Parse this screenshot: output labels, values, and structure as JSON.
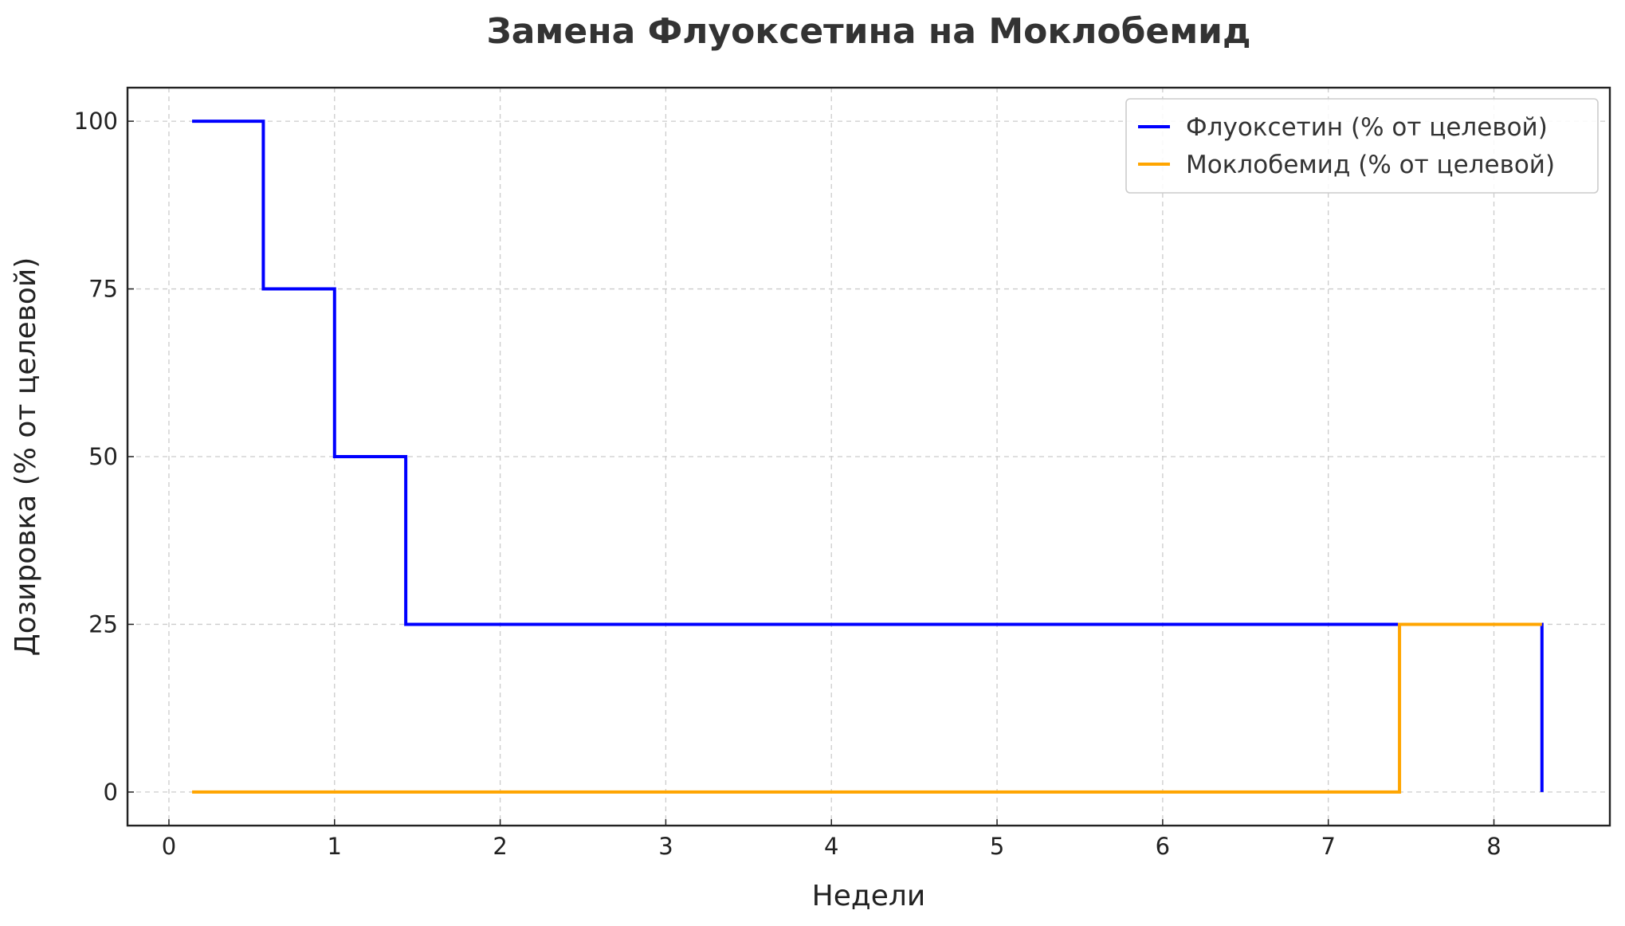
{
  "chart_data": {
    "type": "line",
    "step": "post",
    "title": "Замена Флуоксетина на Моклобемид",
    "xlabel": "Недели",
    "ylabel": "Дозировка (% от целевой)",
    "xlim": [
      -0.25,
      8.7
    ],
    "ylim": [
      -5,
      105
    ],
    "xticks": [
      0,
      1,
      2,
      3,
      4,
      5,
      6,
      7,
      8
    ],
    "yticks": [
      0,
      25,
      50,
      75,
      100
    ],
    "grid": true,
    "legend_position": "top-right",
    "series": [
      {
        "name": "Флуоксетин (% от целевой)",
        "color": "#0000ff",
        "x": [
          0.14,
          0.57,
          1.0,
          1.43,
          8.29
        ],
        "y": [
          100,
          75,
          50,
          25,
          0
        ]
      },
      {
        "name": "Моклобемид (% от целевой)",
        "color": "#ffa500",
        "x": [
          0.14,
          7.43,
          8.29
        ],
        "y": [
          0,
          25,
          25
        ]
      }
    ]
  }
}
